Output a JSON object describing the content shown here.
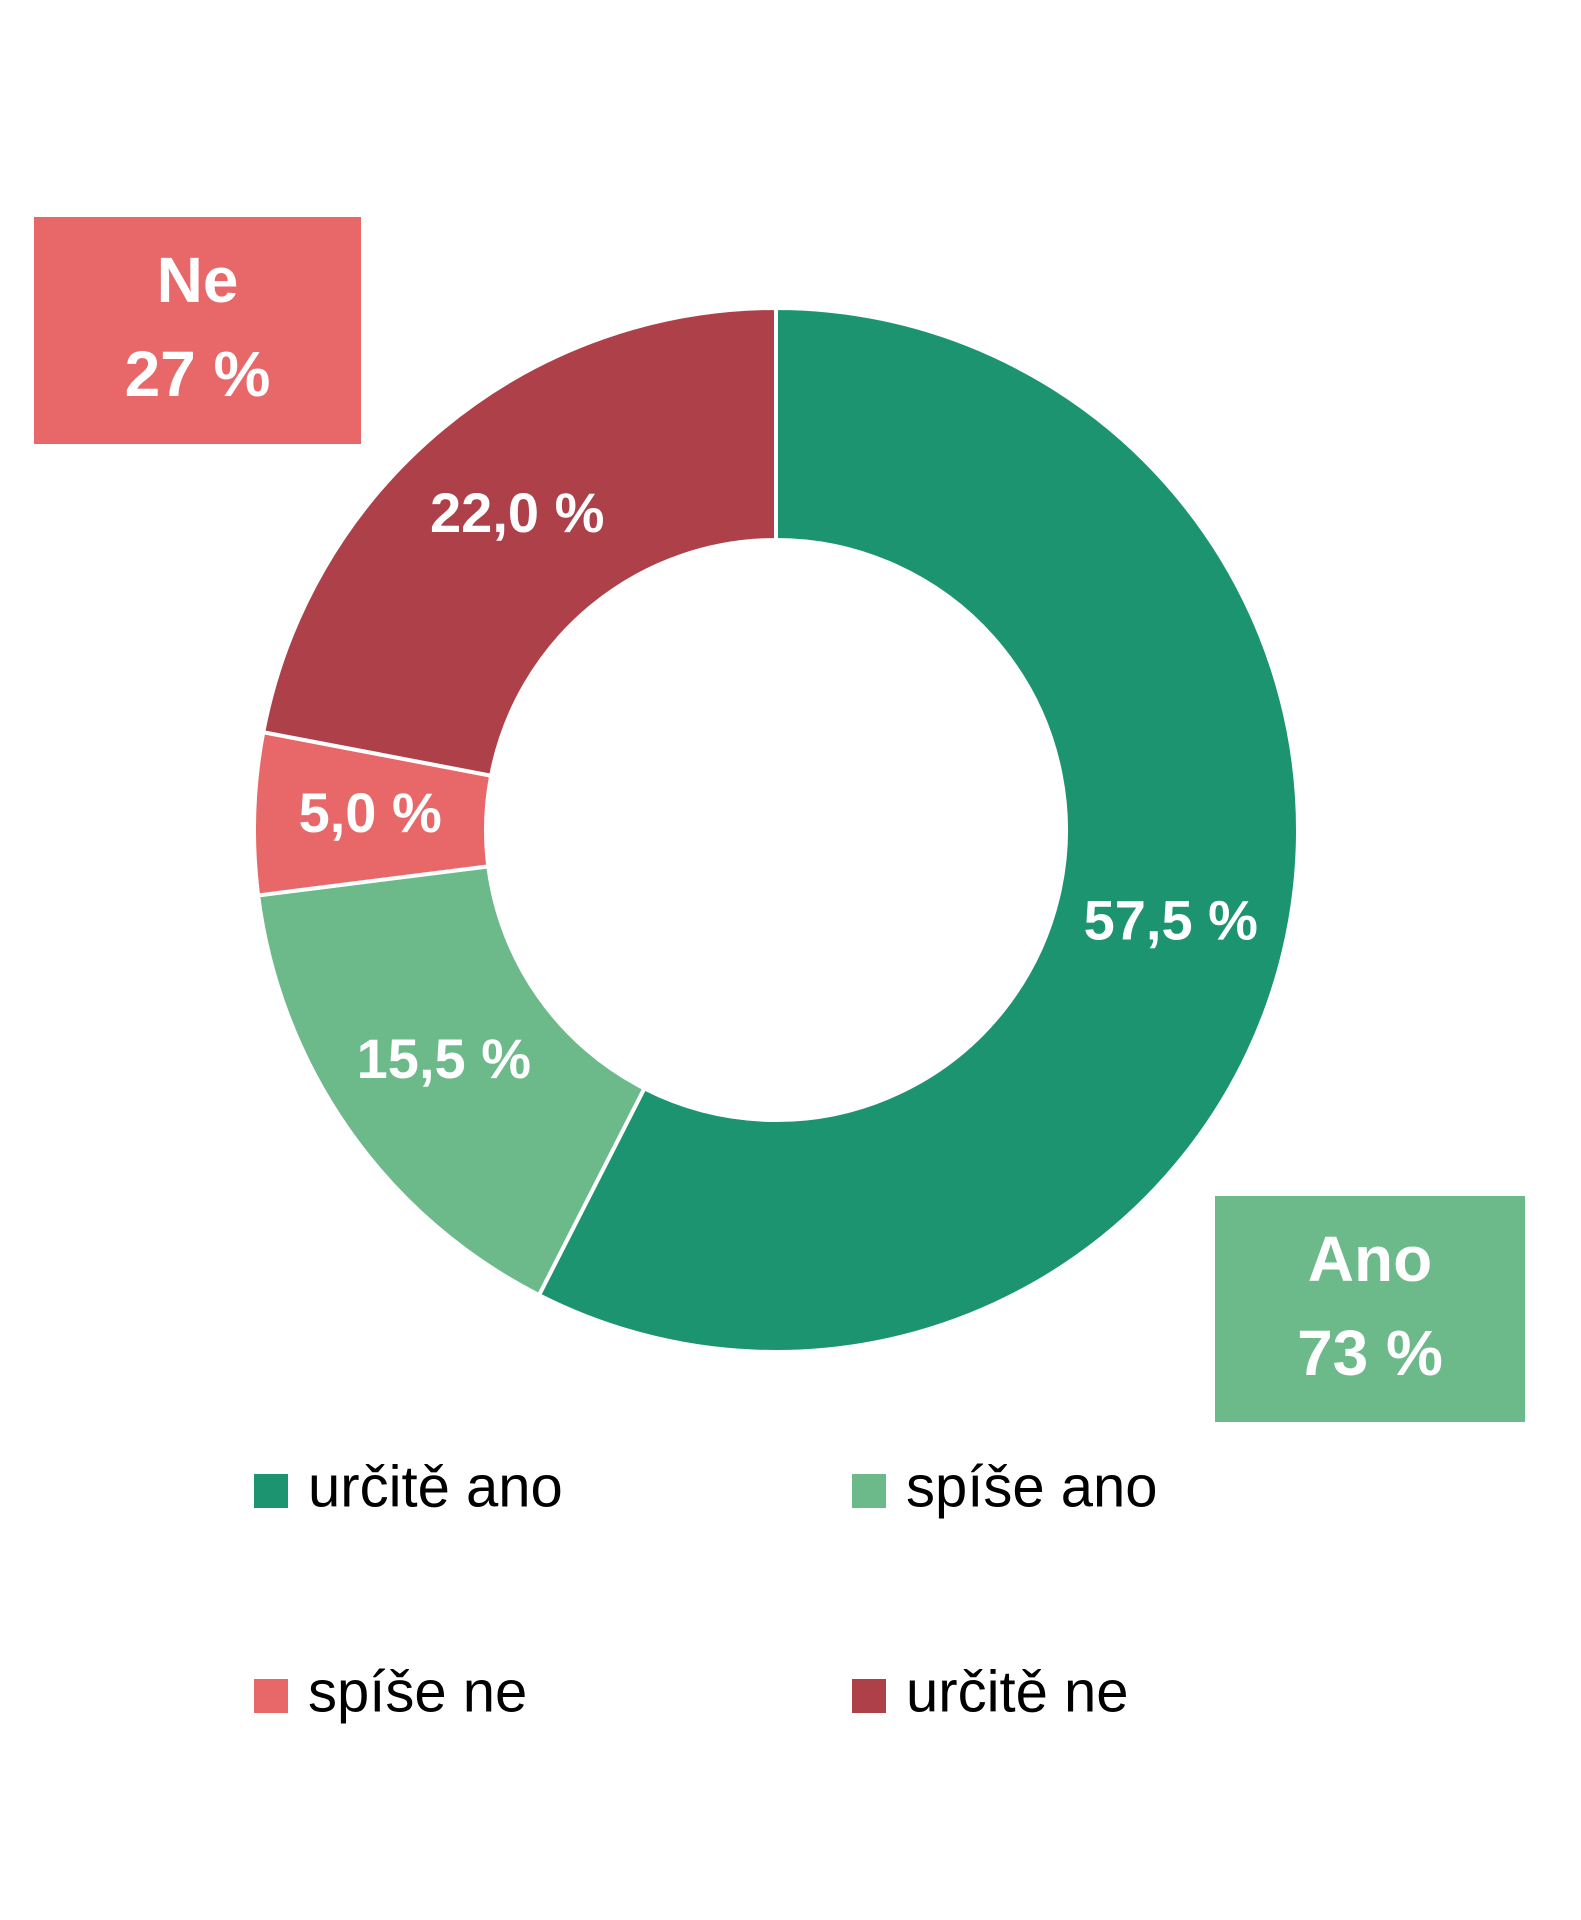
{
  "chart_data": {
    "type": "donut",
    "categories": [
      "určitě ano",
      "spíše ano",
      "spíše ne",
      "určitě ne"
    ],
    "values": [
      57.5,
      15.5,
      5.0,
      22.0
    ],
    "value_labels": [
      "57,5 %",
      "15,5 %",
      "5,0 %",
      "22,0 %"
    ],
    "colors": [
      "#1c9470",
      "#6cb98a",
      "#e8686a",
      "#ad4048"
    ],
    "annotations": [
      {
        "label": "Ne",
        "value": 27,
        "value_label": "27 %",
        "color": "#e8686a"
      },
      {
        "label": "Ano",
        "value": 73,
        "value_label": "73 %",
        "color": "#6cb98a"
      }
    ],
    "legend": "bottom"
  }
}
